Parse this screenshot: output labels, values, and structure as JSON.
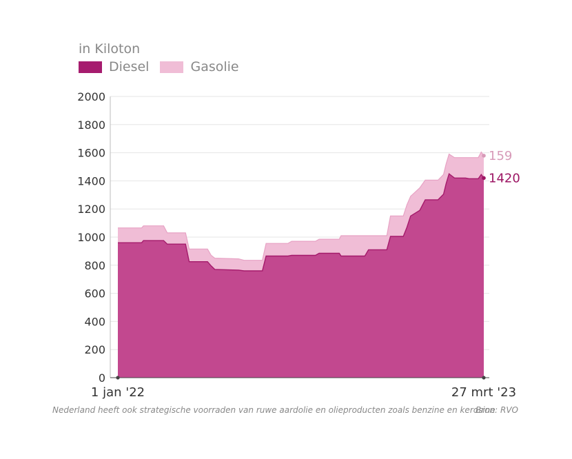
{
  "unit_label": "in Kiloton",
  "colors": {
    "diesel": "#c2488f",
    "diesel_line": "#a41a6b",
    "gasolie": "#f0bdd6",
    "gasolie_line": "#e7a2c4",
    "gasolie_label": "#d79ab8",
    "diesel_label": "#9c1563"
  },
  "chart_data": {
    "type": "area",
    "stacked": true,
    "title": "",
    "ylabel": "in Kiloton",
    "xlabel": "",
    "ylim": [
      0,
      2000
    ],
    "yticks": [
      "0",
      "200",
      "400",
      "600",
      "800",
      "1000",
      "1200",
      "1400",
      "1600",
      "1800",
      "2000"
    ],
    "xticks": [
      {
        "label": "1 jan '22",
        "t": 0
      },
      {
        "label": "27 mrt '23",
        "t": 1
      }
    ],
    "grid": true,
    "legend_position": "top-left",
    "series": [
      {
        "name": "Diesel",
        "points": [
          [
            0.0,
            960
          ],
          [
            0.065,
            960
          ],
          [
            0.07,
            975
          ],
          [
            0.125,
            975
          ],
          [
            0.135,
            950
          ],
          [
            0.185,
            950
          ],
          [
            0.195,
            825
          ],
          [
            0.245,
            825
          ],
          [
            0.255,
            795
          ],
          [
            0.265,
            770
          ],
          [
            0.33,
            765
          ],
          [
            0.345,
            760
          ],
          [
            0.395,
            760
          ],
          [
            0.405,
            865
          ],
          [
            0.465,
            865
          ],
          [
            0.475,
            870
          ],
          [
            0.54,
            870
          ],
          [
            0.55,
            885
          ],
          [
            0.605,
            885
          ],
          [
            0.61,
            865
          ],
          [
            0.675,
            865
          ],
          [
            0.685,
            910
          ],
          [
            0.735,
            910
          ],
          [
            0.745,
            1005
          ],
          [
            0.78,
            1005
          ],
          [
            0.79,
            1070
          ],
          [
            0.8,
            1150
          ],
          [
            0.825,
            1190
          ],
          [
            0.84,
            1265
          ],
          [
            0.875,
            1265
          ],
          [
            0.89,
            1305
          ],
          [
            0.897,
            1380
          ],
          [
            0.905,
            1450
          ],
          [
            0.92,
            1420
          ],
          [
            0.95,
            1420
          ],
          [
            0.96,
            1415
          ],
          [
            0.985,
            1415
          ],
          [
            0.993,
            1445
          ],
          [
            1.0,
            1420
          ]
        ]
      },
      {
        "name": "Gasolie",
        "points": [
          [
            0.0,
            105
          ],
          [
            0.065,
            105
          ],
          [
            0.07,
            105
          ],
          [
            0.125,
            105
          ],
          [
            0.135,
            80
          ],
          [
            0.185,
            80
          ],
          [
            0.195,
            90
          ],
          [
            0.245,
            90
          ],
          [
            0.255,
            75
          ],
          [
            0.265,
            80
          ],
          [
            0.33,
            80
          ],
          [
            0.345,
            75
          ],
          [
            0.395,
            75
          ],
          [
            0.405,
            90
          ],
          [
            0.465,
            90
          ],
          [
            0.475,
            100
          ],
          [
            0.54,
            100
          ],
          [
            0.55,
            100
          ],
          [
            0.605,
            100
          ],
          [
            0.61,
            145
          ],
          [
            0.675,
            145
          ],
          [
            0.685,
            100
          ],
          [
            0.735,
            100
          ],
          [
            0.745,
            145
          ],
          [
            0.78,
            145
          ],
          [
            0.79,
            160
          ],
          [
            0.8,
            140
          ],
          [
            0.825,
            160
          ],
          [
            0.84,
            140
          ],
          [
            0.875,
            140
          ],
          [
            0.89,
            140
          ],
          [
            0.897,
            140
          ],
          [
            0.905,
            140
          ],
          [
            0.92,
            145
          ],
          [
            0.95,
            145
          ],
          [
            0.96,
            150
          ],
          [
            0.985,
            150
          ],
          [
            0.993,
            160
          ],
          [
            1.0,
            159
          ]
        ]
      }
    ],
    "end_labels": {
      "Gasolie": "159",
      "Diesel": "1420"
    }
  },
  "legend": [
    {
      "label": "Diesel",
      "color": "#a61c6e"
    },
    {
      "label": "Gasolie",
      "color": "#f0bdd6"
    }
  ],
  "footnote": "Nederland heeft ook strategische voorraden van ruwe aardolie en olieproducten zoals benzine en kerosine",
  "source": "Bron: RVO"
}
